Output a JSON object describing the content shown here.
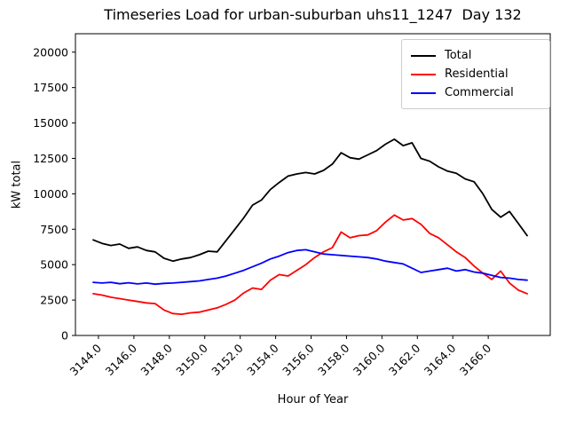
{
  "chart_data": {
    "type": "line",
    "title": "Timeseries Load for urban-suburban uhs11_1247  Day 132",
    "xlabel": "Hour of Year",
    "ylabel": "kW total",
    "xlim": [
      3142.7,
      3169.5
    ],
    "ylim": [
      0,
      21300
    ],
    "grid": false,
    "legend_position": "upper right",
    "background": "#ffffff",
    "axes_color": "#000000",
    "xticks": {
      "values": [
        3144,
        3146,
        3148,
        3150,
        3152,
        3154,
        3156,
        3158,
        3160,
        3162,
        3164,
        3166
      ],
      "labels": [
        "3144.0",
        "3146.0",
        "3148.0",
        "3150.0",
        "3152.0",
        "3154.0",
        "3156.0",
        "3158.0",
        "3160.0",
        "3162.0",
        "3164.0",
        "3166.0"
      ]
    },
    "yticks": {
      "values": [
        0,
        2500,
        5000,
        7500,
        10000,
        12500,
        15000,
        17500,
        20000
      ],
      "labels": [
        "0",
        "2500",
        "5000",
        "7500",
        "10000",
        "12500",
        "15000",
        "17500",
        "20000"
      ]
    },
    "x": [
      3143.7,
      3144.2,
      3144.7,
      3145.2,
      3145.7,
      3146.2,
      3146.7,
      3147.2,
      3147.7,
      3148.2,
      3148.7,
      3149.2,
      3149.7,
      3150.2,
      3150.7,
      3151.2,
      3151.7,
      3152.2,
      3152.7,
      3153.2,
      3153.7,
      3154.2,
      3154.7,
      3155.2,
      3155.7,
      3156.2,
      3156.7,
      3157.2,
      3157.7,
      3158.2,
      3158.7,
      3159.2,
      3159.7,
      3160.2,
      3160.7,
      3161.2,
      3161.7,
      3162.2,
      3162.7,
      3163.2,
      3163.7,
      3164.2,
      3164.7,
      3165.2,
      3165.7,
      3166.2,
      3166.7,
      3167.2,
      3167.7,
      3168.2
    ],
    "series": [
      {
        "name": "Total",
        "color": "#000000",
        "values": [
          6750,
          6500,
          6350,
          6450,
          6150,
          6250,
          6000,
          5900,
          5450,
          5250,
          5400,
          5500,
          5700,
          5950,
          5900,
          6700,
          7500,
          8300,
          9200,
          9560,
          10300,
          10800,
          11250,
          11400,
          11500,
          11400,
          11650,
          12100,
          12900,
          12550,
          12450,
          12750,
          13050,
          13500,
          13850,
          13400,
          13600,
          12500,
          12300,
          11900,
          11600,
          11450,
          11050,
          10850,
          10000,
          8900,
          8350,
          8750,
          7900,
          7050
        ]
      },
      {
        "name": "Residential",
        "color": "#ff0000",
        "values": [
          2950,
          2850,
          2700,
          2600,
          2500,
          2400,
          2300,
          2250,
          1800,
          1550,
          1500,
          1600,
          1650,
          1800,
          1950,
          2200,
          2500,
          3000,
          3350,
          3250,
          3900,
          4300,
          4200,
          4600,
          5000,
          5500,
          5900,
          6200,
          7300,
          6900,
          7050,
          7100,
          7400,
          8000,
          8500,
          8150,
          8250,
          7850,
          7200,
          6900,
          6400,
          5900,
          5500,
          4900,
          4400,
          3950,
          4550,
          3700,
          3200,
          2950
        ]
      },
      {
        "name": "Commercial",
        "color": "#0000ff",
        "values": [
          3750,
          3700,
          3750,
          3650,
          3720,
          3640,
          3700,
          3620,
          3680,
          3700,
          3750,
          3800,
          3850,
          3950,
          4050,
          4200,
          4400,
          4600,
          4850,
          5100,
          5400,
          5600,
          5850,
          6000,
          6050,
          5900,
          5750,
          5700,
          5650,
          5600,
          5550,
          5500,
          5400,
          5250,
          5150,
          5050,
          4750,
          4450,
          4550,
          4650,
          4750,
          4550,
          4650,
          4480,
          4400,
          4250,
          4100,
          4050,
          3950,
          3900
        ]
      }
    ]
  }
}
